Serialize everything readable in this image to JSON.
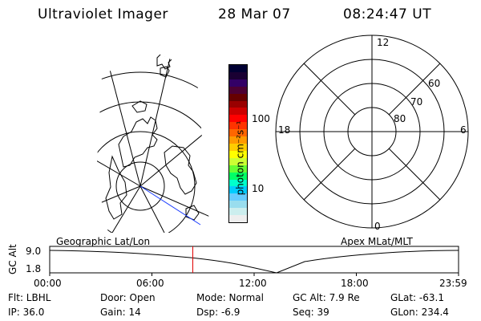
{
  "header": {
    "title": "Ultraviolet Imager",
    "date": "28 Mar 07",
    "time": "08:24:47 UT"
  },
  "colorbar": {
    "unit_label": "photon cm⁻²s⁻¹",
    "ticks": [
      "100",
      "10"
    ],
    "colors": [
      "#000033",
      "#1a0033",
      "#330066",
      "#4d0033",
      "#660000",
      "#990000",
      "#cc0000",
      "#ff0000",
      "#ff3300",
      "#ff6600",
      "#ff9900",
      "#ffcc00",
      "#ffff00",
      "#ccff33",
      "#66ff33",
      "#00ff66",
      "#00ffcc",
      "#00ccff",
      "#66ccff",
      "#99ddee",
      "#cceeee",
      "#eeeeee"
    ]
  },
  "polar_plot": {
    "mlt_labels": {
      "top": "12",
      "left": "18",
      "right": "6",
      "bottom": "0"
    },
    "lat_labels": [
      "60",
      "70",
      "80"
    ]
  },
  "timeline": {
    "left_title": "Geographic Lat/Lon",
    "right_title": "Apex MLat/MLT",
    "y_axis_label": "GC Alt",
    "y_ticks": [
      "9.0",
      "1.8"
    ],
    "x_ticks": [
      "00:00",
      "06:00",
      "12:00",
      "18:00",
      "23:59"
    ],
    "current_time_fraction": 0.35
  },
  "info": {
    "filter": "Flt: LBHL",
    "ip": "IP: 36.0",
    "door": "Door: Open",
    "gain": "Gain: 14",
    "mode": "Mode: Normal",
    "dsp": "Dsp: -6.9",
    "gc_alt": "GC Alt: 7.9 Re",
    "seq": "Seq: 39",
    "glat": "GLat: -63.1",
    "glon": "GLon: 234.4"
  }
}
